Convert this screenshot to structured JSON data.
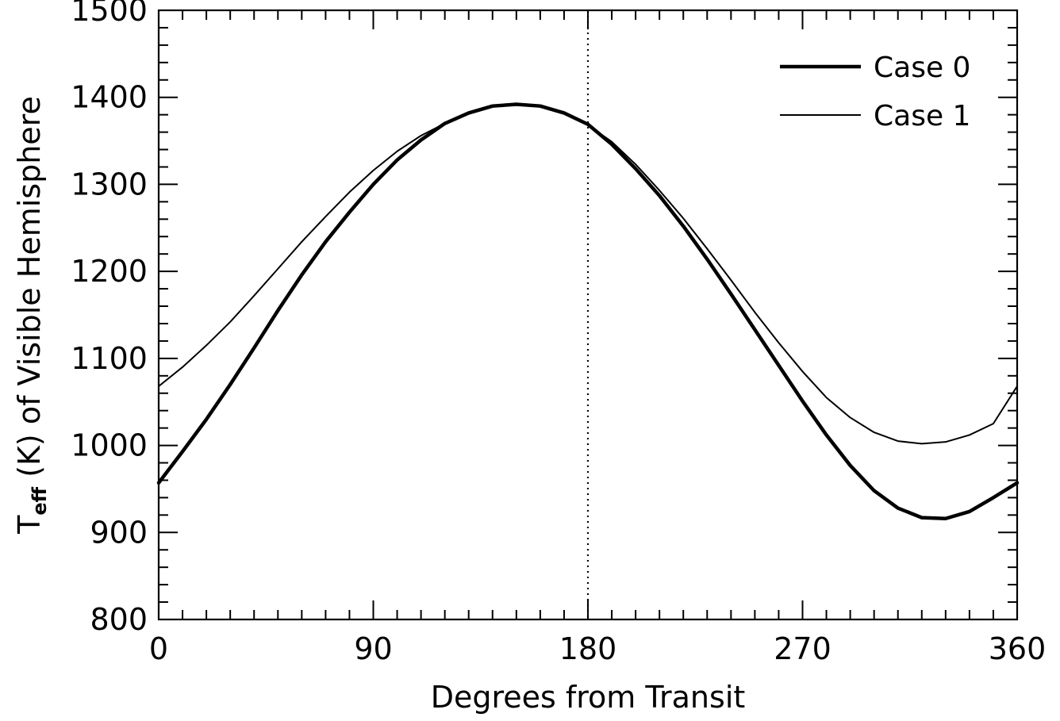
{
  "chart_data": {
    "type": "line",
    "xlabel": "Degrees from Transit",
    "ylabel": {
      "prefix": "T",
      "subscript": "eff",
      "rest": " (K) of Visible Hemisphere"
    },
    "xlim": [
      0,
      360
    ],
    "ylim": [
      800,
      1500
    ],
    "xticks": [
      0,
      90,
      180,
      270,
      360
    ],
    "xtick_labels": [
      "0",
      "90",
      "180",
      "270",
      "360"
    ],
    "yticks": [
      800,
      900,
      1000,
      1100,
      1200,
      1300,
      1400,
      1500
    ],
    "ytick_labels": [
      "800",
      "900",
      "1000",
      "1100",
      "1200",
      "1300",
      "1400",
      "1500"
    ],
    "x_minor_step": 10,
    "y_minor_step": 20,
    "vertical_reference_line": {
      "x": 180,
      "style": "dotted"
    },
    "grid": false,
    "legend_position": "top-right",
    "series": [
      {
        "name": "Case 0",
        "line_weight": "thick",
        "points": [
          [
            0,
            957
          ],
          [
            10,
            993
          ],
          [
            20,
            1030
          ],
          [
            30,
            1070
          ],
          [
            40,
            1112
          ],
          [
            50,
            1155
          ],
          [
            60,
            1196
          ],
          [
            70,
            1234
          ],
          [
            80,
            1268
          ],
          [
            90,
            1300
          ],
          [
            100,
            1328
          ],
          [
            110,
            1351
          ],
          [
            120,
            1370
          ],
          [
            130,
            1382
          ],
          [
            140,
            1390
          ],
          [
            150,
            1392
          ],
          [
            160,
            1390
          ],
          [
            170,
            1382
          ],
          [
            180,
            1369
          ],
          [
            190,
            1346
          ],
          [
            200,
            1318
          ],
          [
            210,
            1287
          ],
          [
            220,
            1252
          ],
          [
            230,
            1214
          ],
          [
            240,
            1174
          ],
          [
            250,
            1133
          ],
          [
            260,
            1092
          ],
          [
            270,
            1051
          ],
          [
            280,
            1012
          ],
          [
            290,
            977
          ],
          [
            300,
            948
          ],
          [
            310,
            928
          ],
          [
            320,
            917
          ],
          [
            330,
            916
          ],
          [
            340,
            924
          ],
          [
            350,
            940
          ],
          [
            360,
            957
          ]
        ]
      },
      {
        "name": "Case 1",
        "line_weight": "thin",
        "points": [
          [
            0,
            1068
          ],
          [
            10,
            1090
          ],
          [
            20,
            1115
          ],
          [
            30,
            1142
          ],
          [
            40,
            1172
          ],
          [
            50,
            1203
          ],
          [
            60,
            1234
          ],
          [
            70,
            1263
          ],
          [
            80,
            1291
          ],
          [
            90,
            1316
          ],
          [
            100,
            1338
          ],
          [
            110,
            1356
          ],
          [
            120,
            1370
          ],
          [
            130,
            1382
          ],
          [
            140,
            1389
          ],
          [
            150,
            1392
          ],
          [
            160,
            1390
          ],
          [
            170,
            1382
          ],
          [
            180,
            1368
          ],
          [
            190,
            1349
          ],
          [
            200,
            1323
          ],
          [
            210,
            1293
          ],
          [
            220,
            1261
          ],
          [
            230,
            1226
          ],
          [
            240,
            1190
          ],
          [
            250,
            1153
          ],
          [
            260,
            1118
          ],
          [
            270,
            1085
          ],
          [
            280,
            1055
          ],
          [
            290,
            1032
          ],
          [
            300,
            1015
          ],
          [
            310,
            1005
          ],
          [
            320,
            1002
          ],
          [
            330,
            1004
          ],
          [
            340,
            1012
          ],
          [
            350,
            1025
          ],
          [
            360,
            1068
          ]
        ]
      }
    ]
  }
}
